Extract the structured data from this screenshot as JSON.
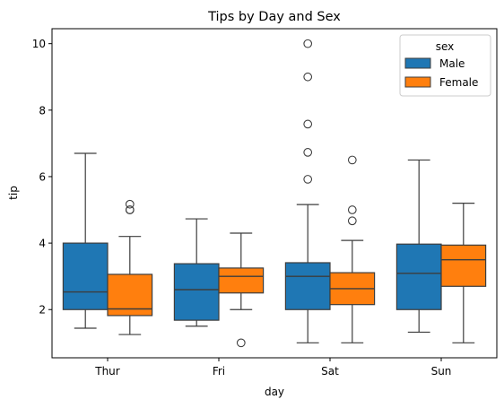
{
  "chart_data": {
    "type": "box",
    "title": "Tips by Day and Sex",
    "xlabel": "day",
    "ylabel": "tip",
    "categories": [
      "Thur",
      "Fri",
      "Sat",
      "Sun"
    ],
    "ylim": [
      0.55,
      10.45
    ],
    "yticks": [
      2,
      4,
      6,
      8,
      10
    ],
    "grid": false,
    "legend": {
      "title": "sex",
      "position": "top-right"
    },
    "series": [
      {
        "name": "Male",
        "color": "#1f77b4",
        "boxes": [
          {
            "whisker_low": 1.44,
            "q1": 2.0,
            "median": 2.53,
            "q3": 4.0,
            "whisker_high": 6.7,
            "outliers": []
          },
          {
            "whisker_low": 1.5,
            "q1": 1.68,
            "median": 2.6,
            "q3": 3.38,
            "whisker_high": 4.73,
            "outliers": []
          },
          {
            "whisker_low": 1.0,
            "q1": 2.0,
            "median": 3.0,
            "q3": 3.41,
            "whisker_high": 5.16,
            "outliers": [
              5.92,
              6.73,
              7.58,
              9.0,
              10.0
            ]
          },
          {
            "whisker_low": 1.32,
            "q1": 2.0,
            "median": 3.09,
            "q3": 3.97,
            "whisker_high": 6.5,
            "outliers": []
          }
        ]
      },
      {
        "name": "Female",
        "color": "#ff7f0e",
        "boxes": [
          {
            "whisker_low": 1.25,
            "q1": 1.82,
            "median": 2.02,
            "q3": 3.06,
            "whisker_high": 4.2,
            "outliers": [
              5.0,
              5.0,
              5.17
            ]
          },
          {
            "whisker_low": 2.0,
            "q1": 2.5,
            "median": 3.0,
            "q3": 3.25,
            "whisker_high": 4.3,
            "outliers": [
              1.0
            ]
          },
          {
            "whisker_low": 1.0,
            "q1": 2.15,
            "median": 2.63,
            "q3": 3.11,
            "whisker_high": 4.08,
            "outliers": [
              4.67,
              5.0,
              6.5
            ]
          },
          {
            "whisker_low": 1.0,
            "q1": 2.7,
            "median": 3.5,
            "q3": 3.94,
            "whisker_high": 5.2,
            "outliers": []
          }
        ]
      }
    ]
  }
}
